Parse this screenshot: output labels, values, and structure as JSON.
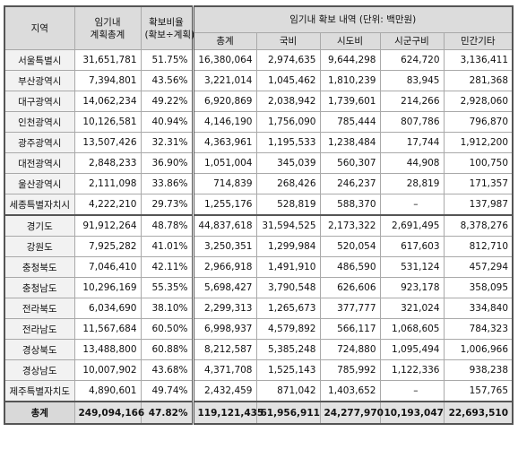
{
  "header": {
    "region": "지역",
    "plan_total": [
      "임기내",
      "계획총계"
    ],
    "ratio": [
      "확보비율",
      "(확보÷계획)"
    ],
    "group_title": "임기내 확보 내역 (단위: 백만원)",
    "sub": [
      "총계",
      "국비",
      "시도비",
      "시군구비",
      "민간기타"
    ]
  },
  "rows": [
    {
      "region": "서울특별시",
      "plan": "31,651,781",
      "ratio": "51.75%",
      "total": "16,380,064",
      "national": "2,974,635",
      "sido": "9,644,298",
      "sigungu": "624,720",
      "private": "3,136,411"
    },
    {
      "region": "부산광역시",
      "plan": "7,394,801",
      "ratio": "43.56%",
      "total": "3,221,014",
      "national": "1,045,462",
      "sido": "1,810,239",
      "sigungu": "83,945",
      "private": "281,368"
    },
    {
      "region": "대구광역시",
      "plan": "14,062,234",
      "ratio": "49.22%",
      "total": "6,920,869",
      "national": "2,038,942",
      "sido": "1,739,601",
      "sigungu": "214,266",
      "private": "2,928,060"
    },
    {
      "region": "인천광역시",
      "plan": "10,126,581",
      "ratio": "40.94%",
      "total": "4,146,190",
      "national": "1,756,090",
      "sido": "785,444",
      "sigungu": "807,786",
      "private": "796,870"
    },
    {
      "region": "광주광역시",
      "plan": "13,507,426",
      "ratio": "32.31%",
      "total": "4,363,961",
      "national": "1,195,533",
      "sido": "1,238,484",
      "sigungu": "17,744",
      "private": "1,912,200"
    },
    {
      "region": "대전광역시",
      "plan": "2,848,233",
      "ratio": "36.90%",
      "total": "1,051,004",
      "national": "345,039",
      "sido": "560,307",
      "sigungu": "44,908",
      "private": "100,750"
    },
    {
      "region": "울산광역시",
      "plan": "2,111,098",
      "ratio": "33.86%",
      "total": "714,839",
      "national": "268,426",
      "sido": "246,237",
      "sigungu": "28,819",
      "private": "171,357"
    },
    {
      "region": "세종특별자치시",
      "plan": "4,222,210",
      "ratio": "29.73%",
      "total": "1,255,176",
      "national": "528,819",
      "sido": "588,370",
      "sigungu": "–",
      "private": "137,987"
    },
    {
      "region": "경기도",
      "plan": "91,912,264",
      "ratio": "48.78%",
      "total": "44,837,618",
      "national": "31,594,525",
      "sido": "2,173,322",
      "sigungu": "2,691,495",
      "private": "8,378,276"
    },
    {
      "region": "강원도",
      "plan": "7,925,282",
      "ratio": "41.01%",
      "total": "3,250,351",
      "national": "1,299,984",
      "sido": "520,054",
      "sigungu": "617,603",
      "private": "812,710"
    },
    {
      "region": "충청북도",
      "plan": "7,046,410",
      "ratio": "42.11%",
      "total": "2,966,918",
      "national": "1,491,910",
      "sido": "486,590",
      "sigungu": "531,124",
      "private": "457,294"
    },
    {
      "region": "충청남도",
      "plan": "10,296,169",
      "ratio": "55.35%",
      "total": "5,698,427",
      "national": "3,790,548",
      "sido": "626,606",
      "sigungu": "923,178",
      "private": "358,095"
    },
    {
      "region": "전라북도",
      "plan": "6,034,690",
      "ratio": "38.10%",
      "total": "2,299,313",
      "national": "1,265,673",
      "sido": "377,777",
      "sigungu": "321,024",
      "private": "334,840"
    },
    {
      "region": "전라남도",
      "plan": "11,567,684",
      "ratio": "60.50%",
      "total": "6,998,937",
      "national": "4,579,892",
      "sido": "566,117",
      "sigungu": "1,068,605",
      "private": "784,323"
    },
    {
      "region": "경상북도",
      "plan": "13,488,800",
      "ratio": "60.88%",
      "total": "8,212,587",
      "national": "5,385,248",
      "sido": "724,880",
      "sigungu": "1,095,494",
      "private": "1,006,966"
    },
    {
      "region": "경상남도",
      "plan": "10,007,902",
      "ratio": "43.68%",
      "total": "4,371,708",
      "national": "1,525,143",
      "sido": "785,992",
      "sigungu": "1,122,336",
      "private": "938,238"
    },
    {
      "region": "제주특별자치도",
      "plan": "4,890,601",
      "ratio": "49.74%",
      "total": "2,432,459",
      "national": "871,042",
      "sido": "1,403,652",
      "sigungu": "–",
      "private": "157,765"
    }
  ],
  "total_row": {
    "region": "총계",
    "plan": "249,094,166",
    "ratio": "47.82%",
    "total": "119,121,435",
    "national": "61,956,911",
    "sido": "24,277,970",
    "sigungu": "10,193,047",
    "private": "22,693,510"
  }
}
